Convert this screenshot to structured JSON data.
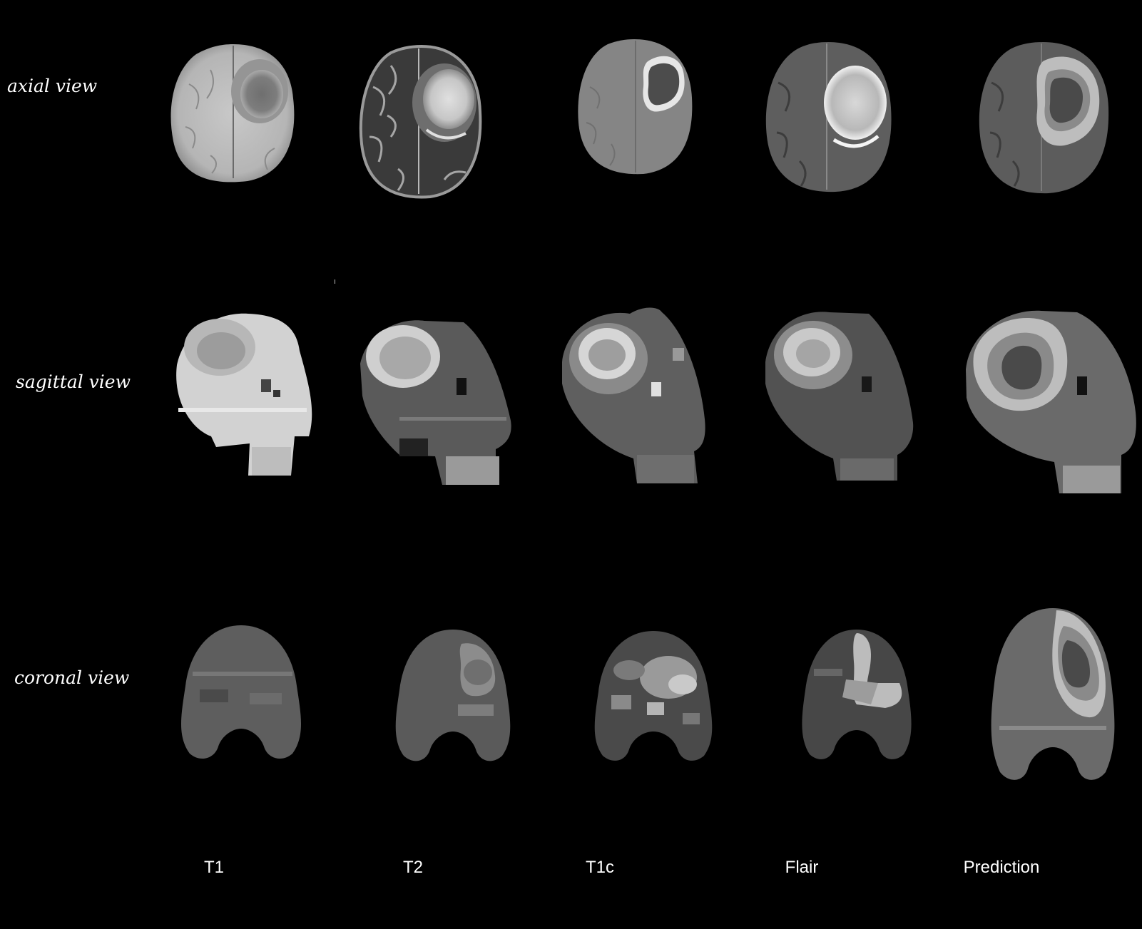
{
  "rows": [
    {
      "id": "axial",
      "label": "axial view"
    },
    {
      "id": "sagittal",
      "label": "sagittal view"
    },
    {
      "id": "coronal",
      "label": "coronal view"
    }
  ],
  "columns": [
    {
      "id": "t1",
      "label": "T1"
    },
    {
      "id": "t2",
      "label": "T2"
    },
    {
      "id": "t1c",
      "label": "T1c"
    },
    {
      "id": "flair",
      "label": "Flair"
    },
    {
      "id": "prediction",
      "label": "Prediction"
    }
  ],
  "colors": {
    "background": "#000000",
    "label_text": "#ffffff",
    "prediction_edema": "#bdbdbd",
    "prediction_enhancing": "#8a8a8a",
    "prediction_necrosis": "#4a4a4a"
  }
}
